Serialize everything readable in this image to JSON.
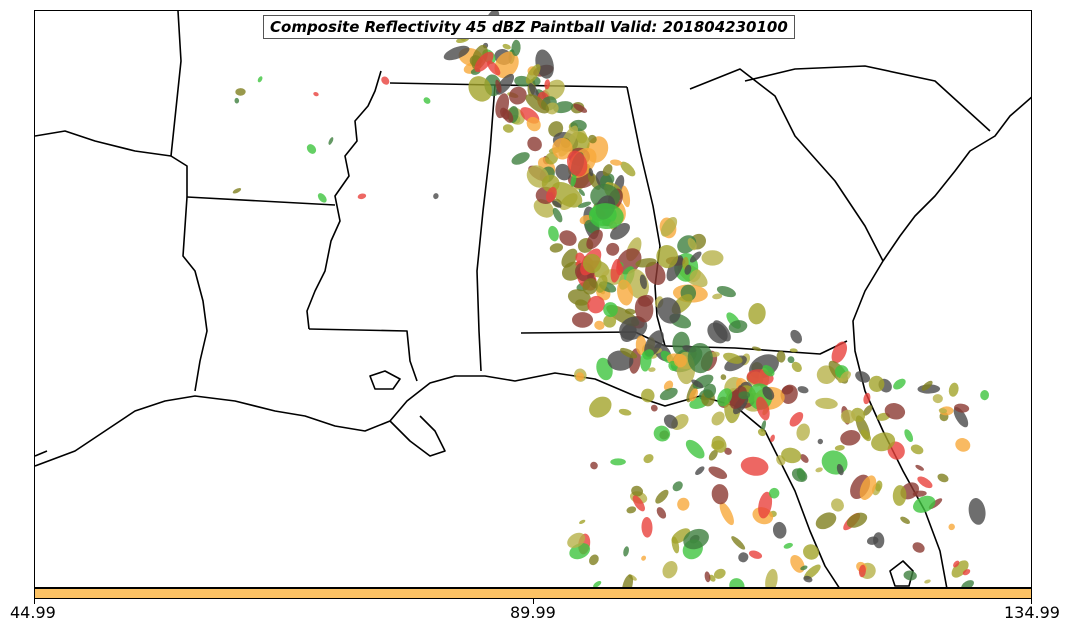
{
  "title": "Composite Reflectivity 45 dBZ Paintball Valid: 201804230100",
  "colorbar": {
    "color": "#fcc264",
    "ticks": [
      "44.99",
      "89.99",
      "134.99"
    ]
  },
  "colors": {
    "red": "#e8413c",
    "orange": "#f7a93b",
    "olive": "#a3a42a",
    "brown": "#8b3a32",
    "darkgray": "#4a4a4a",
    "green": "#3fc43f",
    "darkgreen": "#3f7f3f",
    "khaki": "#b7b248",
    "darkolive": "#7f7f1f"
  }
}
